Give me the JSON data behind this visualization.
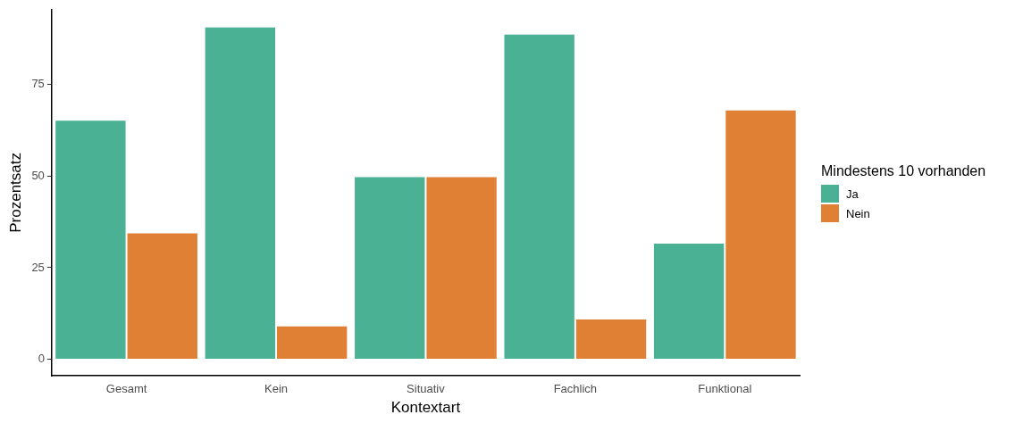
{
  "chart_data": {
    "type": "bar",
    "xlabel": "Kontextart",
    "ylabel": "Prozentsatz",
    "legend_title": "Mindestens 10 vorhanden",
    "categories": [
      "Gesamt",
      "Kein",
      "Situativ",
      "Fachlich",
      "Funktional"
    ],
    "series": [
      {
        "name": "Ja",
        "color": "#4bb194",
        "values": [
          65.4,
          90.9,
          50,
          88.9,
          31.8
        ]
      },
      {
        "name": "Nein",
        "color": "#e08035",
        "values": [
          34.6,
          9.2,
          50,
          11.1,
          68.2
        ]
      }
    ],
    "ylim": [
      -4.5,
      95.5
    ],
    "yticks": [
      0,
      25,
      50,
      75
    ],
    "grid": false,
    "legend": "right"
  }
}
